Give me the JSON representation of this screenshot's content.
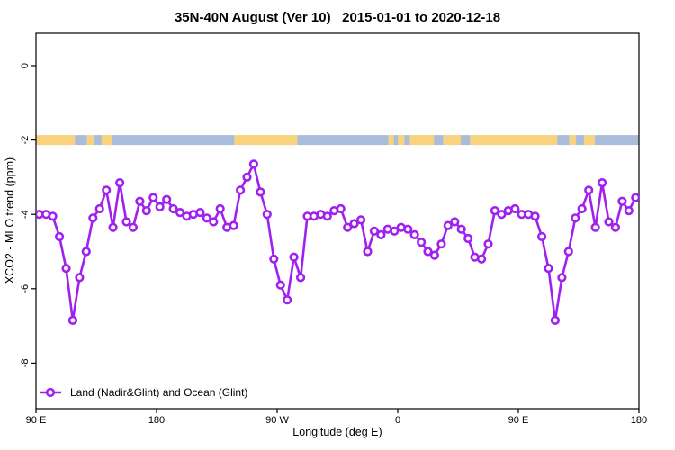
{
  "header": {
    "title": "35N-40N August (Ver 10)   2015-01-01 to 2020-12-18"
  },
  "legend": {
    "label": "Land (Nadir&Glint) and Ocean (Glint)",
    "position": "bottom-left"
  },
  "colors": {
    "line": "#A020F0",
    "marker_fill": "#ffffff",
    "land": "#F8D27D",
    "ocean": "#A9BDDA",
    "axis": "#000000",
    "background": "#ffffff"
  },
  "map_band": {
    "center_value": -2,
    "description": "land-ocean strip drawn at y = -2",
    "segments": [
      {
        "from": 90,
        "to": 119,
        "surface": "land"
      },
      {
        "from": 119,
        "to": 128,
        "surface": "ocean"
      },
      {
        "from": 128,
        "to": 133,
        "surface": "land"
      },
      {
        "from": 133,
        "to": 139,
        "surface": "ocean"
      },
      {
        "from": 139,
        "to": 147,
        "surface": "land"
      },
      {
        "from": 147,
        "to": 238,
        "surface": "ocean"
      },
      {
        "from": 238,
        "to": 285,
        "surface": "land"
      },
      {
        "from": 285,
        "to": 353,
        "surface": "ocean"
      },
      {
        "from": 353,
        "to": 357,
        "surface": "land"
      },
      {
        "from": 357,
        "to": 360,
        "surface": "ocean"
      },
      {
        "from": 360,
        "to": 365,
        "surface": "land"
      },
      {
        "from": 365,
        "to": 369,
        "surface": "ocean"
      },
      {
        "from": 369,
        "to": 387,
        "surface": "land"
      },
      {
        "from": 387,
        "to": 394,
        "surface": "ocean"
      },
      {
        "from": 394,
        "to": 407,
        "surface": "land"
      },
      {
        "from": 407,
        "to": 414,
        "surface": "ocean"
      },
      {
        "from": 414,
        "to": 479,
        "surface": "land"
      },
      {
        "from": 479,
        "to": 488,
        "surface": "ocean"
      },
      {
        "from": 488,
        "to": 493,
        "surface": "land"
      },
      {
        "from": 493,
        "to": 499,
        "surface": "ocean"
      },
      {
        "from": 499,
        "to": 507,
        "surface": "land"
      },
      {
        "from": 507,
        "to": 540,
        "surface": "ocean"
      }
    ]
  },
  "chart_data": {
    "type": "line",
    "title": "35N-40N August (Ver 10)  2015-01-01 to 2020-12-18",
    "xlabel": "Longitude (deg E)",
    "ylabel": "XCO2 - MLO trend (ppm)",
    "xlim": [
      90,
      540
    ],
    "ylim": [
      -9.2,
      0.9
    ],
    "grid": false,
    "legend_position": "bottom-left",
    "x_ticks": [
      {
        "value": 90,
        "label": "90 E"
      },
      {
        "value": 180,
        "label": "180"
      },
      {
        "value": 270,
        "label": "90 W"
      },
      {
        "value": 360,
        "label": "0"
      },
      {
        "value": 450,
        "label": "90 E"
      },
      {
        "value": 540,
        "label": "180"
      }
    ],
    "y_ticks": [
      {
        "value": 0,
        "label": "0"
      },
      {
        "value": -2,
        "label": "-2"
      },
      {
        "value": -4,
        "label": "-4"
      },
      {
        "value": -6,
        "label": "-6"
      },
      {
        "value": -8,
        "label": "-8"
      }
    ],
    "series": [
      {
        "name": "Land (Nadir&Glint) and Ocean (Glint)",
        "color": "#A020F0",
        "marker": "open-circle",
        "x": [
          92.5,
          97.5,
          102.5,
          107.5,
          112.5,
          117.5,
          122.5,
          127.5,
          132.5,
          137.5,
          142.5,
          147.5,
          152.5,
          157.5,
          162.5,
          167.5,
          172.5,
          177.5,
          182.5,
          187.5,
          192.5,
          197.5,
          202.5,
          207.5,
          212.5,
          217.5,
          222.5,
          227.5,
          232.5,
          237.5,
          242.5,
          247.5,
          252.5,
          257.5,
          262.5,
          267.5,
          272.5,
          277.5,
          282.5,
          287.5,
          292.5,
          297.5,
          302.5,
          307.5,
          312.5,
          317.5,
          322.5,
          327.5,
          332.5,
          337.5,
          342.5,
          347.5,
          352.5,
          357.5,
          362.5,
          367.5,
          372.5,
          377.5,
          382.5,
          387.5,
          392.5,
          397.5,
          402.5,
          407.5,
          412.5,
          417.5,
          422.5,
          427.5,
          432.5,
          437.5,
          442.5,
          447.5,
          452.5,
          457.5,
          462.5,
          467.5,
          472.5,
          477.5,
          482.5,
          487.5,
          492.5,
          497.5,
          502.5,
          507.5,
          512.5,
          517.5,
          522.5,
          527.5,
          532.5,
          537.5
        ],
        "y": [
          -4.0,
          -4.0,
          -4.05,
          -4.6,
          -5.45,
          -6.85,
          -5.7,
          -5.0,
          -4.1,
          -3.85,
          -3.35,
          -4.35,
          -3.15,
          -4.2,
          -4.35,
          -3.65,
          -3.9,
          -3.55,
          -3.8,
          -3.6,
          -3.85,
          -3.95,
          -4.05,
          -4.0,
          -3.95,
          -4.1,
          -4.2,
          -3.85,
          -4.35,
          -4.3,
          -3.35,
          -3.0,
          -2.65,
          -3.4,
          -4.0,
          -5.2,
          -5.9,
          -6.3,
          -5.15,
          -5.7,
          -4.05,
          -4.05,
          -4.0,
          -4.05,
          -3.9,
          -3.85,
          -4.35,
          -4.25,
          -4.15,
          -5.0,
          -4.45,
          -4.55,
          -4.4,
          -4.45,
          -4.35,
          -4.4,
          -4.55,
          -4.75,
          -5.0,
          -5.1,
          -4.8,
          -4.3,
          -4.2,
          -4.4,
          -4.65,
          -5.15,
          -5.2,
          -4.8,
          -3.9,
          -4.0,
          -3.9,
          -3.85,
          -4.0,
          -4.0,
          -4.05,
          -4.6,
          -5.45,
          -6.85,
          -5.7,
          -5.0,
          -4.1,
          -3.85,
          -3.35,
          -4.35,
          -3.15,
          -4.2,
          -4.35,
          -3.65,
          -3.9,
          -3.55
        ]
      }
    ]
  }
}
